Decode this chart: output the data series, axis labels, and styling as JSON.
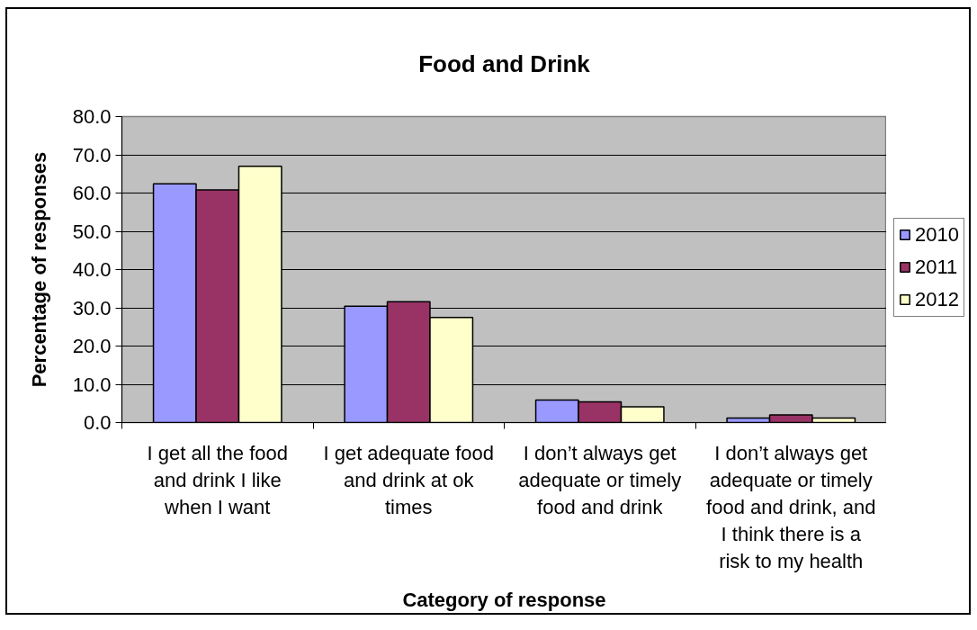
{
  "chart_data": {
    "type": "bar",
    "title": "Food and Drink",
    "xlabel": "Category of response",
    "ylabel": "Percentage of responses",
    "categories": [
      "I get all the food and drink I like when I want",
      "I get adequate food and drink at ok times",
      "I don’t always get adequate or timely food and drink",
      "I don’t always get adequate or timely food and drink, and I think there is a risk to my health"
    ],
    "series": [
      {
        "name": "2010",
        "color": "#9999ff",
        "values": [
          62.4,
          30.4,
          5.9,
          1.2
        ]
      },
      {
        "name": "2011",
        "color": "#993366",
        "values": [
          60.8,
          31.6,
          5.4,
          2.0
        ]
      },
      {
        "name": "2012",
        "color": "#ffffcc",
        "values": [
          67.0,
          27.5,
          4.1,
          1.2
        ]
      }
    ],
    "ylim": [
      0,
      80
    ],
    "yticks": [
      {
        "value": 0,
        "label": "0.0"
      },
      {
        "value": 10,
        "label": "10.0"
      },
      {
        "value": 20,
        "label": "20.0"
      },
      {
        "value": 30,
        "label": "30.0"
      },
      {
        "value": 40,
        "label": "40.0"
      },
      {
        "value": 50,
        "label": "50.0"
      },
      {
        "value": 60,
        "label": "60.0"
      },
      {
        "value": 70,
        "label": "70.0"
      },
      {
        "value": 80,
        "label": "80.0"
      }
    ],
    "grid": "y",
    "legend": "right"
  }
}
